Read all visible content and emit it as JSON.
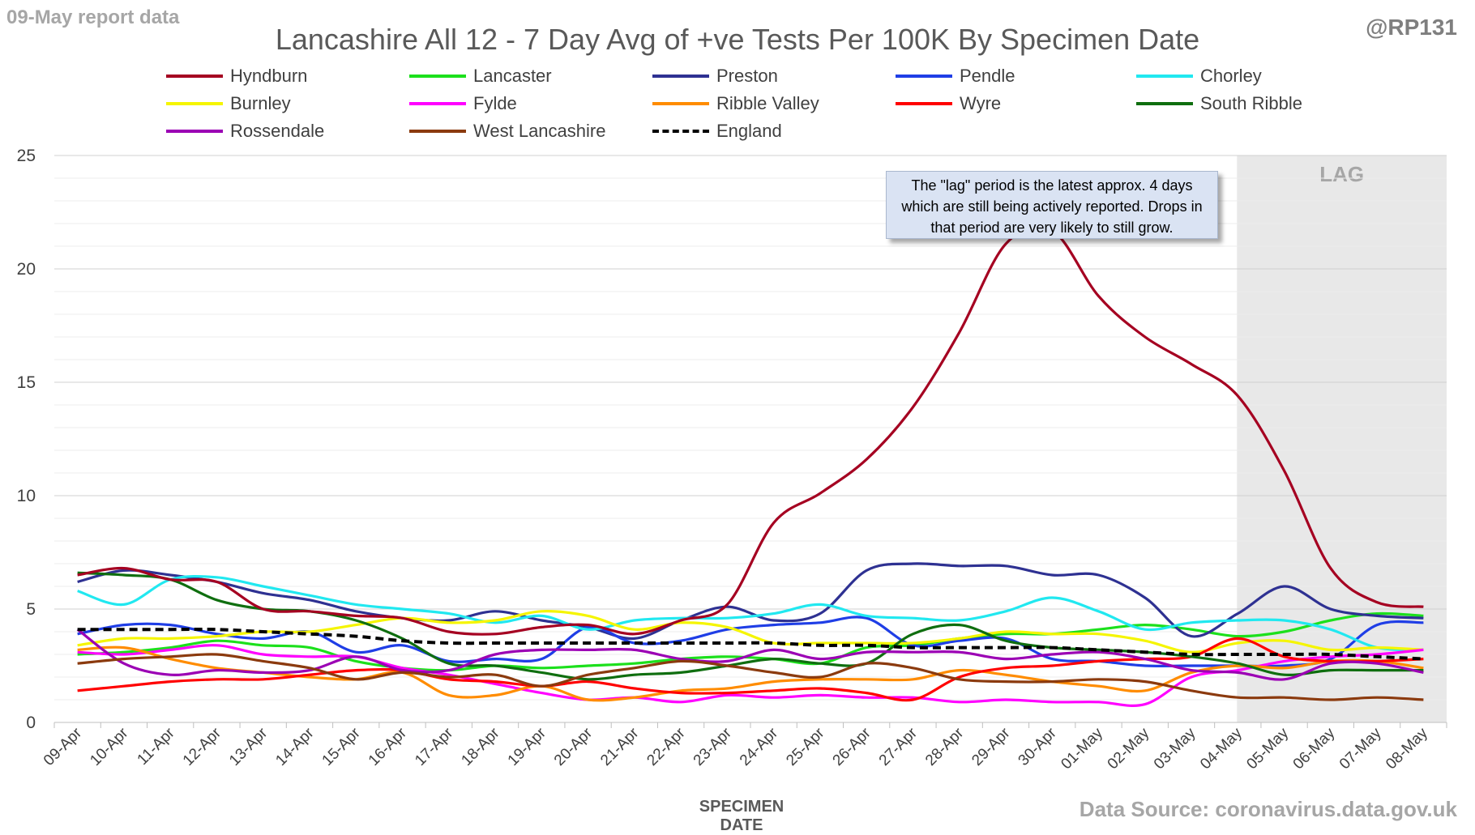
{
  "header": {
    "report_note": "09-May report data",
    "handle": "@RP131",
    "title": "Lancashire All 12 - 7 Day Avg of +ve Tests Per 100K By Specimen Date",
    "source": "Data Source: coronavirus.data.gov.uk"
  },
  "annotation": {
    "note": "The \"lag\" period is the latest approx. 4 days which are still being actively reported.  Drops in that period are very likely to still grow.",
    "lag_label": "LAG"
  },
  "chart_data": {
    "type": "line",
    "title": "Lancashire All 12 - 7 Day Avg of +ve Tests Per 100K By Specimen Date",
    "xlabel": "SPECIMEN DATE",
    "ylabel": "",
    "ylim": [
      0,
      25
    ],
    "yticks": [
      0,
      5,
      10,
      15,
      20,
      25
    ],
    "grid": "horizontal",
    "legend_position": "top",
    "lag_region": {
      "from": "04-May",
      "to": "08-May"
    },
    "categories": [
      "09-Apr",
      "10-Apr",
      "11-Apr",
      "12-Apr",
      "13-Apr",
      "14-Apr",
      "15-Apr",
      "16-Apr",
      "17-Apr",
      "18-Apr",
      "19-Apr",
      "20-Apr",
      "21-Apr",
      "22-Apr",
      "23-Apr",
      "24-Apr",
      "25-Apr",
      "26-Apr",
      "27-Apr",
      "28-Apr",
      "29-Apr",
      "30-Apr",
      "01-May",
      "02-May",
      "03-May",
      "04-May",
      "05-May",
      "06-May",
      "07-May",
      "08-May"
    ],
    "series": [
      {
        "name": "Hyndburn",
        "color": "#a50021",
        "dashed": false,
        "values": [
          6.5,
          6.8,
          6.3,
          6.2,
          5.0,
          4.9,
          4.7,
          4.6,
          4.0,
          3.9,
          4.2,
          4.3,
          3.9,
          4.5,
          5.2,
          8.8,
          10.1,
          11.6,
          13.9,
          17.2,
          21.1,
          21.7,
          18.8,
          17.0,
          15.8,
          14.4,
          11.1,
          6.8,
          5.3,
          5.1
        ]
      },
      {
        "name": "Lancaster",
        "color": "#1ce01c",
        "dashed": false,
        "values": [
          3.0,
          3.1,
          3.3,
          3.6,
          3.4,
          3.3,
          2.7,
          2.4,
          2.3,
          2.5,
          2.4,
          2.5,
          2.6,
          2.8,
          2.9,
          2.8,
          2.6,
          3.3,
          3.4,
          3.7,
          3.9,
          3.9,
          4.1,
          4.3,
          4.1,
          3.8,
          4.0,
          4.5,
          4.8,
          4.7
        ]
      },
      {
        "name": "Preston",
        "color": "#2e3192",
        "dashed": false,
        "values": [
          6.2,
          6.7,
          6.5,
          6.2,
          5.7,
          5.4,
          4.9,
          4.6,
          4.5,
          4.9,
          4.5,
          4.2,
          3.7,
          4.5,
          5.1,
          4.5,
          4.8,
          6.7,
          7.0,
          6.9,
          6.9,
          6.5,
          6.5,
          5.5,
          3.8,
          4.8,
          6.0,
          5.0,
          4.7,
          4.6
        ]
      },
      {
        "name": "Pendle",
        "color": "#1f3ee6",
        "dashed": false,
        "values": [
          3.9,
          4.3,
          4.3,
          3.9,
          3.7,
          4.0,
          3.1,
          3.4,
          2.7,
          2.8,
          2.8,
          4.2,
          3.5,
          3.6,
          4.1,
          4.3,
          4.4,
          4.6,
          3.4,
          3.6,
          3.7,
          2.8,
          2.7,
          2.5,
          2.5,
          2.5,
          2.5,
          2.8,
          4.3,
          4.4
        ]
      },
      {
        "name": "Chorley",
        "color": "#21e8f0",
        "dashed": false,
        "values": [
          5.8,
          5.2,
          6.3,
          6.4,
          6.0,
          5.6,
          5.2,
          5.0,
          4.8,
          4.4,
          4.7,
          4.1,
          4.5,
          4.6,
          4.6,
          4.8,
          5.2,
          4.7,
          4.6,
          4.5,
          4.9,
          5.5,
          4.9,
          4.1,
          4.4,
          4.5,
          4.5,
          4.1,
          3.3,
          3.2
        ]
      },
      {
        "name": "Burnley",
        "color": "#f5f500",
        "dashed": false,
        "values": [
          3.4,
          3.7,
          3.7,
          3.8,
          4.0,
          4.0,
          4.3,
          4.6,
          4.4,
          4.5,
          4.9,
          4.7,
          4.1,
          4.4,
          4.2,
          3.5,
          3.5,
          3.5,
          3.5,
          3.7,
          4.0,
          3.9,
          3.9,
          3.6,
          3.1,
          3.5,
          3.6,
          3.2,
          3.3,
          3.2
        ]
      },
      {
        "name": "Fylde",
        "color": "#ff00ff",
        "dashed": false,
        "values": [
          3.1,
          3.0,
          3.2,
          3.4,
          3.0,
          2.9,
          2.9,
          2.4,
          2.1,
          1.7,
          1.3,
          1.0,
          1.1,
          0.9,
          1.2,
          1.1,
          1.2,
          1.1,
          1.1,
          0.9,
          1.0,
          0.9,
          0.9,
          0.8,
          2.0,
          2.3,
          2.7,
          2.9,
          3.0,
          3.2
        ]
      },
      {
        "name": "Ribble Valley",
        "color": "#ff8c00",
        "dashed": false,
        "values": [
          3.2,
          3.3,
          2.8,
          2.4,
          2.2,
          2.0,
          1.9,
          2.2,
          1.2,
          1.2,
          1.6,
          1.0,
          1.1,
          1.4,
          1.5,
          1.8,
          1.9,
          1.9,
          1.9,
          2.3,
          2.1,
          1.8,
          1.6,
          1.4,
          2.2,
          2.5,
          2.4,
          2.7,
          2.7,
          2.4
        ]
      },
      {
        "name": "Wyre",
        "color": "#ff0000",
        "dashed": false,
        "values": [
          1.4,
          1.6,
          1.8,
          1.9,
          1.9,
          2.1,
          2.3,
          2.3,
          1.9,
          1.8,
          1.6,
          1.8,
          1.5,
          1.3,
          1.3,
          1.4,
          1.5,
          1.3,
          1.0,
          2.0,
          2.4,
          2.5,
          2.7,
          2.8,
          2.9,
          3.7,
          2.9,
          2.7,
          2.7,
          2.8
        ]
      },
      {
        "name": "South Ribble",
        "color": "#0f6e0f",
        "dashed": false,
        "values": [
          6.6,
          6.5,
          6.3,
          5.4,
          5.0,
          4.9,
          4.5,
          3.7,
          2.6,
          2.5,
          2.2,
          1.9,
          2.1,
          2.2,
          2.5,
          2.8,
          2.6,
          2.6,
          3.9,
          4.3,
          3.6,
          3.3,
          3.2,
          3.1,
          2.9,
          2.6,
          2.1,
          2.3,
          2.3,
          2.3
        ]
      },
      {
        "name": "Rossendale",
        "color": "#9b00b4",
        "dashed": false,
        "values": [
          4.1,
          2.6,
          2.1,
          2.3,
          2.2,
          2.3,
          2.9,
          2.3,
          2.3,
          3.0,
          3.2,
          3.2,
          3.2,
          2.8,
          2.7,
          3.2,
          2.8,
          3.1,
          3.1,
          3.1,
          2.8,
          3.0,
          3.1,
          2.8,
          2.3,
          2.2,
          1.9,
          2.6,
          2.6,
          2.2
        ]
      },
      {
        "name": "West Lancashire",
        "color": "#8b3a0e",
        "dashed": false,
        "values": [
          2.6,
          2.8,
          2.9,
          3.0,
          2.7,
          2.4,
          1.9,
          2.2,
          2.0,
          2.1,
          1.6,
          2.1,
          2.4,
          2.7,
          2.5,
          2.2,
          2.0,
          2.6,
          2.4,
          1.9,
          1.8,
          1.8,
          1.9,
          1.8,
          1.4,
          1.1,
          1.1,
          1.0,
          1.1,
          1.0
        ]
      },
      {
        "name": "England",
        "color": "#000000",
        "dashed": true,
        "values": [
          4.1,
          4.1,
          4.1,
          4.1,
          4.0,
          3.9,
          3.8,
          3.6,
          3.5,
          3.5,
          3.5,
          3.5,
          3.5,
          3.5,
          3.5,
          3.5,
          3.4,
          3.4,
          3.3,
          3.3,
          3.3,
          3.3,
          3.2,
          3.1,
          3.0,
          3.0,
          3.0,
          3.0,
          2.9,
          2.8
        ]
      }
    ]
  }
}
